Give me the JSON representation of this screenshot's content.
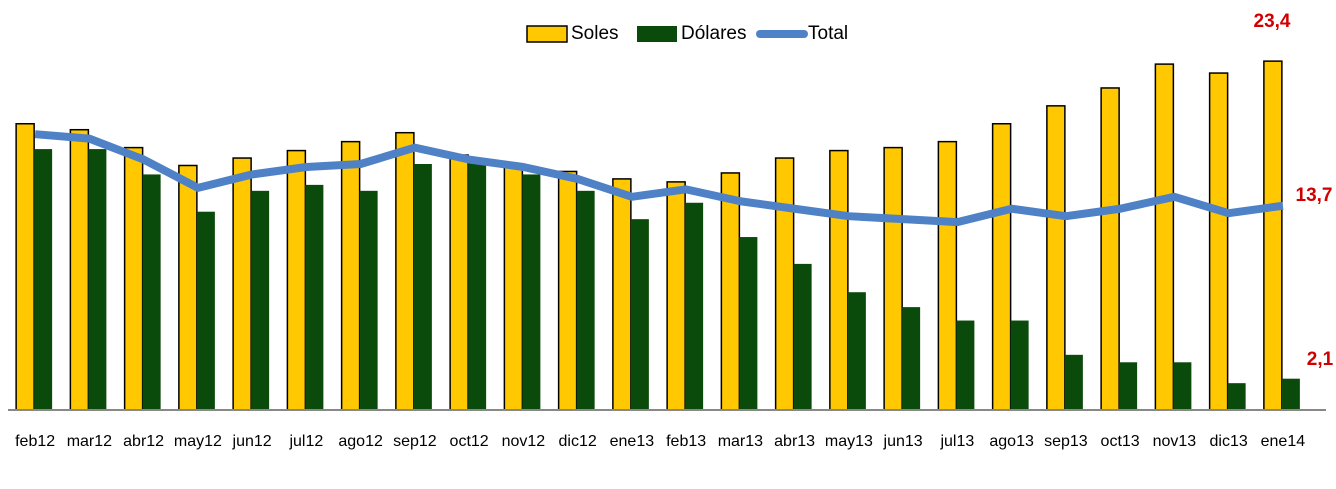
{
  "chart_data": {
    "type": "bar",
    "categories": [
      "feb12",
      "mar12",
      "abr12",
      "may12",
      "jun12",
      "jul12",
      "ago12",
      "sep12",
      "oct12",
      "nov12",
      "dic12",
      "ene13",
      "feb13",
      "mar13",
      "abr13",
      "may13",
      "jun13",
      "jul13",
      "ago13",
      "sep13",
      "oct13",
      "nov13",
      "dic13",
      "ene14"
    ],
    "ylim": [
      0,
      27.5
    ],
    "legend": "top",
    "series": [
      {
        "name": "Soles",
        "color": "#ffc800",
        "type": "bar",
        "values": [
          19.2,
          18.8,
          17.6,
          16.4,
          16.9,
          17.4,
          18.0,
          18.6,
          17.1,
          16.5,
          16.0,
          15.5,
          15.3,
          15.9,
          16.9,
          17.4,
          17.6,
          18.0,
          19.2,
          20.4,
          21.6,
          23.2,
          22.6,
          23.4
        ],
        "value_labels": [
          null,
          null,
          null,
          null,
          null,
          null,
          null,
          null,
          null,
          null,
          null,
          null,
          null,
          null,
          null,
          null,
          null,
          null,
          null,
          null,
          null,
          null,
          null,
          "23,4"
        ]
      },
      {
        "name": "Dólares",
        "color": "#0a4a0a",
        "type": "bar",
        "values": [
          17.5,
          17.5,
          15.8,
          13.3,
          14.7,
          15.1,
          14.7,
          16.5,
          16.8,
          15.8,
          14.7,
          12.8,
          13.9,
          11.6,
          9.8,
          7.9,
          6.9,
          6.0,
          6.0,
          3.7,
          3.2,
          3.2,
          1.8,
          2.1
        ],
        "value_labels": [
          null,
          null,
          null,
          null,
          null,
          null,
          null,
          null,
          null,
          null,
          null,
          null,
          null,
          null,
          null,
          null,
          null,
          null,
          null,
          null,
          null,
          null,
          null,
          "2,1"
        ]
      },
      {
        "name": "Total",
        "color": "#4f81c7",
        "type": "line",
        "values": [
          18.5,
          18.2,
          16.8,
          14.9,
          15.8,
          16.3,
          16.5,
          17.6,
          16.8,
          16.3,
          15.5,
          14.3,
          14.8,
          14.0,
          13.5,
          13.0,
          12.8,
          12.6,
          13.5,
          13.0,
          13.5,
          14.3,
          13.2,
          13.7
        ],
        "value_labels": [
          null,
          null,
          null,
          null,
          null,
          null,
          null,
          null,
          null,
          null,
          null,
          null,
          null,
          null,
          null,
          null,
          null,
          null,
          null,
          null,
          null,
          null,
          null,
          "13,7"
        ]
      }
    ]
  }
}
